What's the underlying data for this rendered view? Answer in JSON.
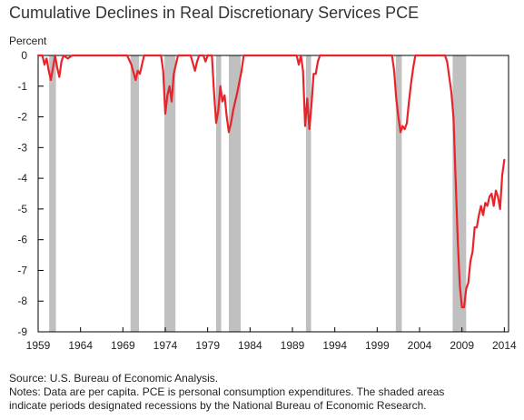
{
  "chart_data": {
    "type": "line",
    "title": "Cumulative Declines in Real Discretionary Services PCE",
    "ylabel": "Percent",
    "xlabel": "",
    "xlim": [
      1959,
      2014.5
    ],
    "ylim": [
      -9,
      0
    ],
    "x_ticks": [
      1959,
      1964,
      1969,
      1974,
      1979,
      1984,
      1989,
      1994,
      1999,
      2004,
      2009,
      2014
    ],
    "y_ticks": [
      0,
      -1,
      -2,
      -3,
      -4,
      -5,
      -6,
      -7,
      -8,
      -9
    ],
    "grid": false,
    "line_color": "#e8232a",
    "recession_color": "#c0c0c0",
    "recessions": [
      [
        1960.3,
        1961.1
      ],
      [
        1969.9,
        1970.9
      ],
      [
        1973.9,
        1975.2
      ],
      [
        1980.0,
        1980.6
      ],
      [
        1981.5,
        1982.9
      ],
      [
        1990.6,
        1991.2
      ],
      [
        2001.2,
        2001.9
      ],
      [
        2007.9,
        2009.5
      ]
    ],
    "series": [
      {
        "x": [
          1959.0,
          1959.5,
          1959.75,
          1960.0,
          1960.25,
          1960.5,
          1960.75,
          1961.0,
          1961.25,
          1961.5,
          1961.75,
          1962.0,
          1962.5,
          1963.0,
          1969.5,
          1970.0,
          1970.5,
          1970.75,
          1971.0,
          1971.5,
          1973.5,
          1973.75,
          1974.0,
          1974.25,
          1974.5,
          1974.75,
          1975.0,
          1975.5,
          1976.0,
          1977.0,
          1977.5,
          1977.75,
          1978.0,
          1978.5,
          1978.75,
          1979.0,
          1979.5,
          1979.75,
          1980.0,
          1980.25,
          1980.5,
          1980.75,
          1981.0,
          1981.25,
          1981.5,
          1981.75,
          1982.0,
          1982.5,
          1983.0,
          1983.25,
          1983.5,
          1983.75,
          1984.0,
          1984.25,
          1989.5,
          1989.75,
          1990.0,
          1990.25,
          1990.5,
          1990.75,
          1991.0,
          1991.25,
          1991.5,
          1991.75,
          1992.0,
          1992.25,
          1992.5,
          2000.5,
          2000.75,
          2001.0,
          2001.25,
          2001.5,
          2001.75,
          2002.0,
          2002.25,
          2002.5,
          2002.75,
          2003.0,
          2003.25,
          2003.5,
          2003.75,
          2004.0,
          2004.5,
          2004.75,
          2005.0,
          2007.0,
          2007.25,
          2007.5,
          2007.75,
          2008.0,
          2008.25,
          2008.5,
          2008.75,
          2009.0,
          2009.25,
          2009.5,
          2009.75,
          2010.0,
          2010.25,
          2010.5,
          2010.75,
          2011.0,
          2011.25,
          2011.5,
          2011.75,
          2012.0,
          2012.25,
          2012.5,
          2012.75,
          2013.0,
          2013.25,
          2013.5,
          2013.75,
          2014.0
        ],
        "y": [
          0,
          0,
          -0.3,
          -0.1,
          -0.5,
          -0.8,
          -0.4,
          0,
          -0.4,
          -0.7,
          -0.2,
          0,
          -0.1,
          0,
          0,
          -0.3,
          -0.8,
          -0.5,
          -0.6,
          0,
          0,
          -0.5,
          -1.9,
          -1.3,
          -1.0,
          -1.5,
          -0.6,
          0,
          0,
          0,
          -0.5,
          -0.2,
          0,
          0,
          -0.2,
          0,
          0,
          -1.2,
          -2.2,
          -1.8,
          -1.0,
          -1.5,
          -1.3,
          -2.0,
          -2.5,
          -2.2,
          -1.8,
          -1.2,
          -0.5,
          0,
          0,
          0,
          0,
          0,
          0,
          -0.3,
          0,
          -0.5,
          -2.3,
          -1.4,
          -2.4,
          -1.6,
          -0.6,
          -0.6,
          -0.2,
          0,
          0,
          0,
          0,
          -0.5,
          -1.4,
          -2.0,
          -2.5,
          -2.3,
          -2.4,
          -2.2,
          -1.5,
          -0.9,
          -0.4,
          0,
          0,
          0,
          0,
          0,
          0,
          0,
          -0.2,
          -0.7,
          -1.2,
          -2.0,
          -4.0,
          -6.0,
          -7.5,
          -8.2,
          -8.2,
          -7.6,
          -7.4,
          -6.7,
          -6.4,
          -5.6,
          -5.6,
          -5.2,
          -4.9,
          -5.2,
          -4.8,
          -4.9,
          -4.6,
          -4.5,
          -4.9,
          -4.4,
          -4.6,
          -5.0,
          -3.9,
          -3.4
        ]
      }
    ]
  },
  "notes": {
    "source": "Source: U.S. Bureau of Economic Analysis.",
    "notes_line1": "Notes: Data are per capita. PCE is personal consumption expenditures. The shaded areas",
    "notes_line2": "indicate periods designated recessions by the National Bureau of Economic Research."
  }
}
